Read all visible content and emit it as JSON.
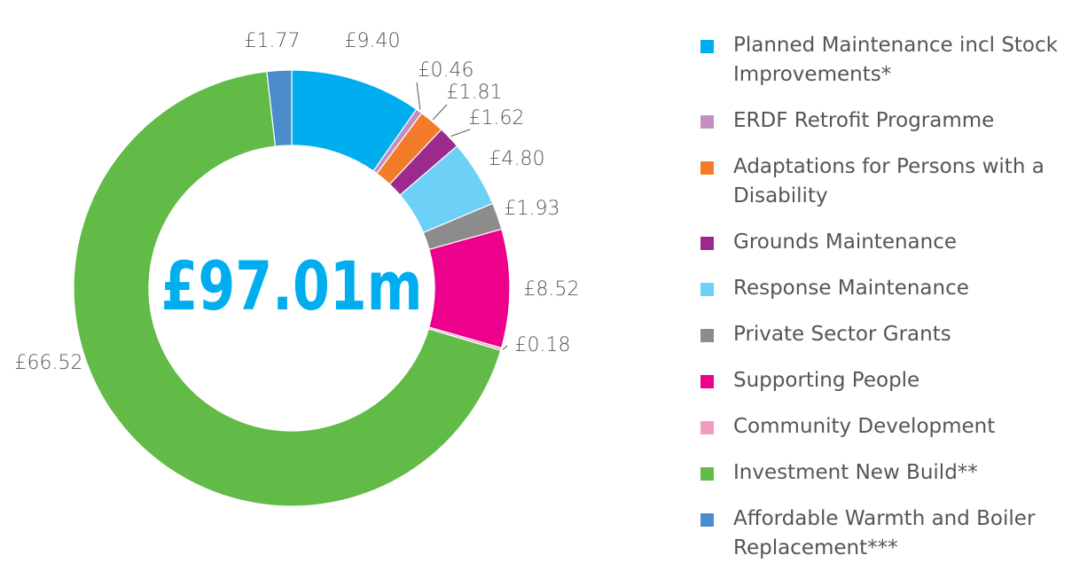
{
  "chart_data": {
    "type": "donut",
    "center_label": "£97.01m",
    "categories": [
      "Planned Maintenance incl Stock Improvements*",
      "ERDF Retrofit Programme",
      "Adaptations for Persons with a Disability",
      "Grounds Maintenance",
      "Response Maintenance",
      "Private Sector Grants",
      "Supporting People",
      "Community Development",
      "Investment New Build**",
      "Affordable Warmth and Boiler Replacement***"
    ],
    "values": [
      9.4,
      0.46,
      1.81,
      1.62,
      4.8,
      1.93,
      8.52,
      0.18,
      66.52,
      1.77
    ],
    "value_labels": [
      "£9.40",
      "£0.46",
      "£1.81",
      "£1.62",
      "£4.80",
      "£1.93",
      "£8.52",
      "£0.18",
      "£66.52",
      "£1.77"
    ],
    "colors": [
      "#00aeef",
      "#c38ec2",
      "#f47b2a",
      "#9c2a8c",
      "#6dd0f7",
      "#8c8c8c",
      "#ec008c",
      "#f49ac1",
      "#62bb46",
      "#4a8ccc"
    ],
    "legend": "right"
  }
}
